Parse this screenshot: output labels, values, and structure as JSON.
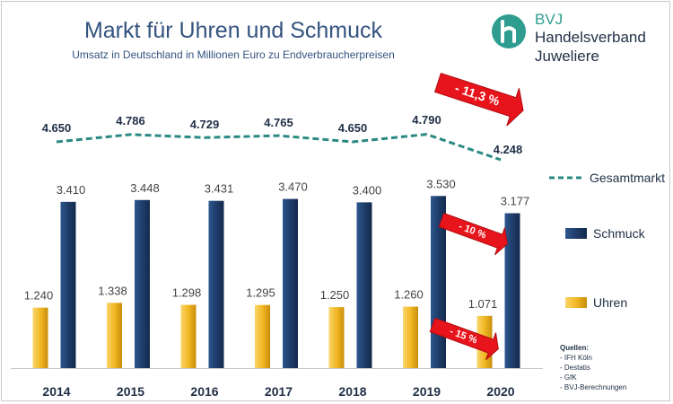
{
  "chart_data": {
    "type": "bar",
    "title": "Markt für Uhren und Schmuck",
    "subtitle": "Umsatz in Deutschland in Millionen Euro zu Endverbraucherpreisen",
    "categories": [
      "2014",
      "2015",
      "2016",
      "2017",
      "2018",
      "2019",
      "2020"
    ],
    "series": [
      {
        "name": "Gesamtmarkt",
        "kind": "line",
        "style": "dashed",
        "color": "#2a8a83",
        "values": [
          4650,
          4786,
          4729,
          4765,
          4650,
          4790,
          4248
        ],
        "labels": [
          "4.650",
          "4.786",
          "4.729",
          "4.765",
          "4.650",
          "4.790",
          "4.248"
        ]
      },
      {
        "name": "Schmuck",
        "kind": "bar",
        "color": "#1f3d6b",
        "values": [
          3410,
          3448,
          3431,
          3470,
          3400,
          3530,
          3177
        ],
        "labels": [
          "3.410",
          "3.448",
          "3.431",
          "3.470",
          "3.400",
          "3.530",
          "3.177"
        ]
      },
      {
        "name": "Uhren",
        "kind": "bar",
        "color": "#f2b824",
        "values": [
          1240,
          1338,
          1298,
          1295,
          1250,
          1260,
          1071
        ],
        "labels": [
          "1.240",
          "1.338",
          "1.298",
          "1.295",
          "1.250",
          "1.260",
          "1.071"
        ]
      }
    ],
    "annotations": [
      {
        "text": "- 11,3 %",
        "target": "Gesamtmarkt",
        "year": "2020"
      },
      {
        "text": "- 10 %",
        "target": "Schmuck",
        "year": "2020"
      },
      {
        "text": "- 15 %",
        "target": "Uhren",
        "year": "2020"
      }
    ],
    "legend_position": "right",
    "grid": false
  },
  "logo": {
    "abbr": "BVJ",
    "line1": "Handelsverband",
    "line2": "Juweliere",
    "color": "#2f9c90"
  },
  "sources": {
    "title": "Quellen:",
    "items": [
      "- IFH Köln",
      "- Destatis",
      "- GfK",
      "- BVJ-Berechnungen"
    ]
  },
  "colors": {
    "text_dark": "#1f2f45",
    "arrow": "#e8141b"
  }
}
